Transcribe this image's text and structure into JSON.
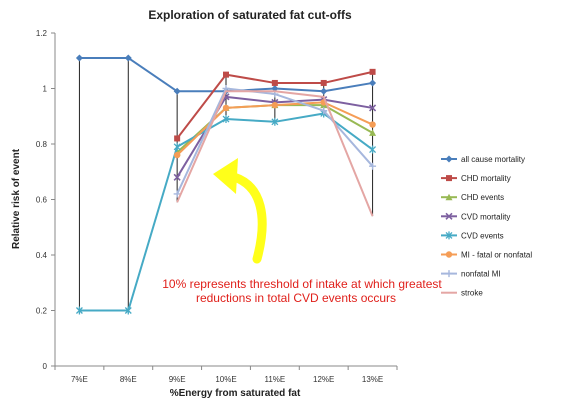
{
  "chart_data": {
    "type": "line",
    "title": "Exploration of saturated fat cut-offs",
    "xlabel": "%Energy from saturated  fat",
    "ylabel": "Relative risk of event",
    "categories": [
      "7%E",
      "8%E",
      "9%E",
      "10%E",
      "11%E",
      "12%E",
      "13%E"
    ],
    "ylim": [
      0,
      1.2
    ],
    "yticks": [
      "0",
      "0.2",
      "0.4",
      "0.6",
      "0.8",
      "1",
      "1.2"
    ],
    "grid": false,
    "legend_position": "right",
    "series": [
      {
        "name": "all cause mortality",
        "color": "#4a7ebb",
        "marker": "diamond",
        "values": [
          1.11,
          1.11,
          0.99,
          0.99,
          1.0,
          0.99,
          1.02
        ]
      },
      {
        "name": "CHD mortality",
        "color": "#be4b48",
        "marker": "square",
        "values": [
          null,
          null,
          0.82,
          1.05,
          1.02,
          1.02,
          1.06
        ]
      },
      {
        "name": "CHD events",
        "color": "#98b954",
        "marker": "triangle",
        "values": [
          null,
          null,
          0.77,
          0.93,
          0.94,
          0.94,
          0.84
        ]
      },
      {
        "name": "CVD mortality",
        "color": "#7d60a0",
        "marker": "x",
        "values": [
          null,
          null,
          0.68,
          0.97,
          0.95,
          0.96,
          0.93
        ]
      },
      {
        "name": "CVD events",
        "color": "#46aac5",
        "marker": "star",
        "values": [
          0.2,
          0.2,
          0.79,
          0.89,
          0.88,
          0.91,
          0.78
        ]
      },
      {
        "name": "MI - fatal or nonfatal",
        "color": "#f59d56",
        "marker": "circle",
        "values": [
          null,
          null,
          0.76,
          0.93,
          0.94,
          0.95,
          0.87
        ]
      },
      {
        "name": "nonfatal MI",
        "color": "#a6b7dd",
        "marker": "plus",
        "values": [
          null,
          null,
          0.62,
          1.0,
          0.98,
          0.92,
          0.72
        ]
      },
      {
        "name": "stroke",
        "color": "#e4a6a4",
        "marker": "none",
        "values": [
          null,
          null,
          0.59,
          0.99,
          0.99,
          0.97,
          0.54
        ]
      }
    ],
    "annotation": {
      "line1": "10% represents threshold of intake at which greatest",
      "line2": "reductions in total CVD events occurs",
      "color": "#e0201b",
      "arrow_color": "#ffff1a"
    }
  }
}
